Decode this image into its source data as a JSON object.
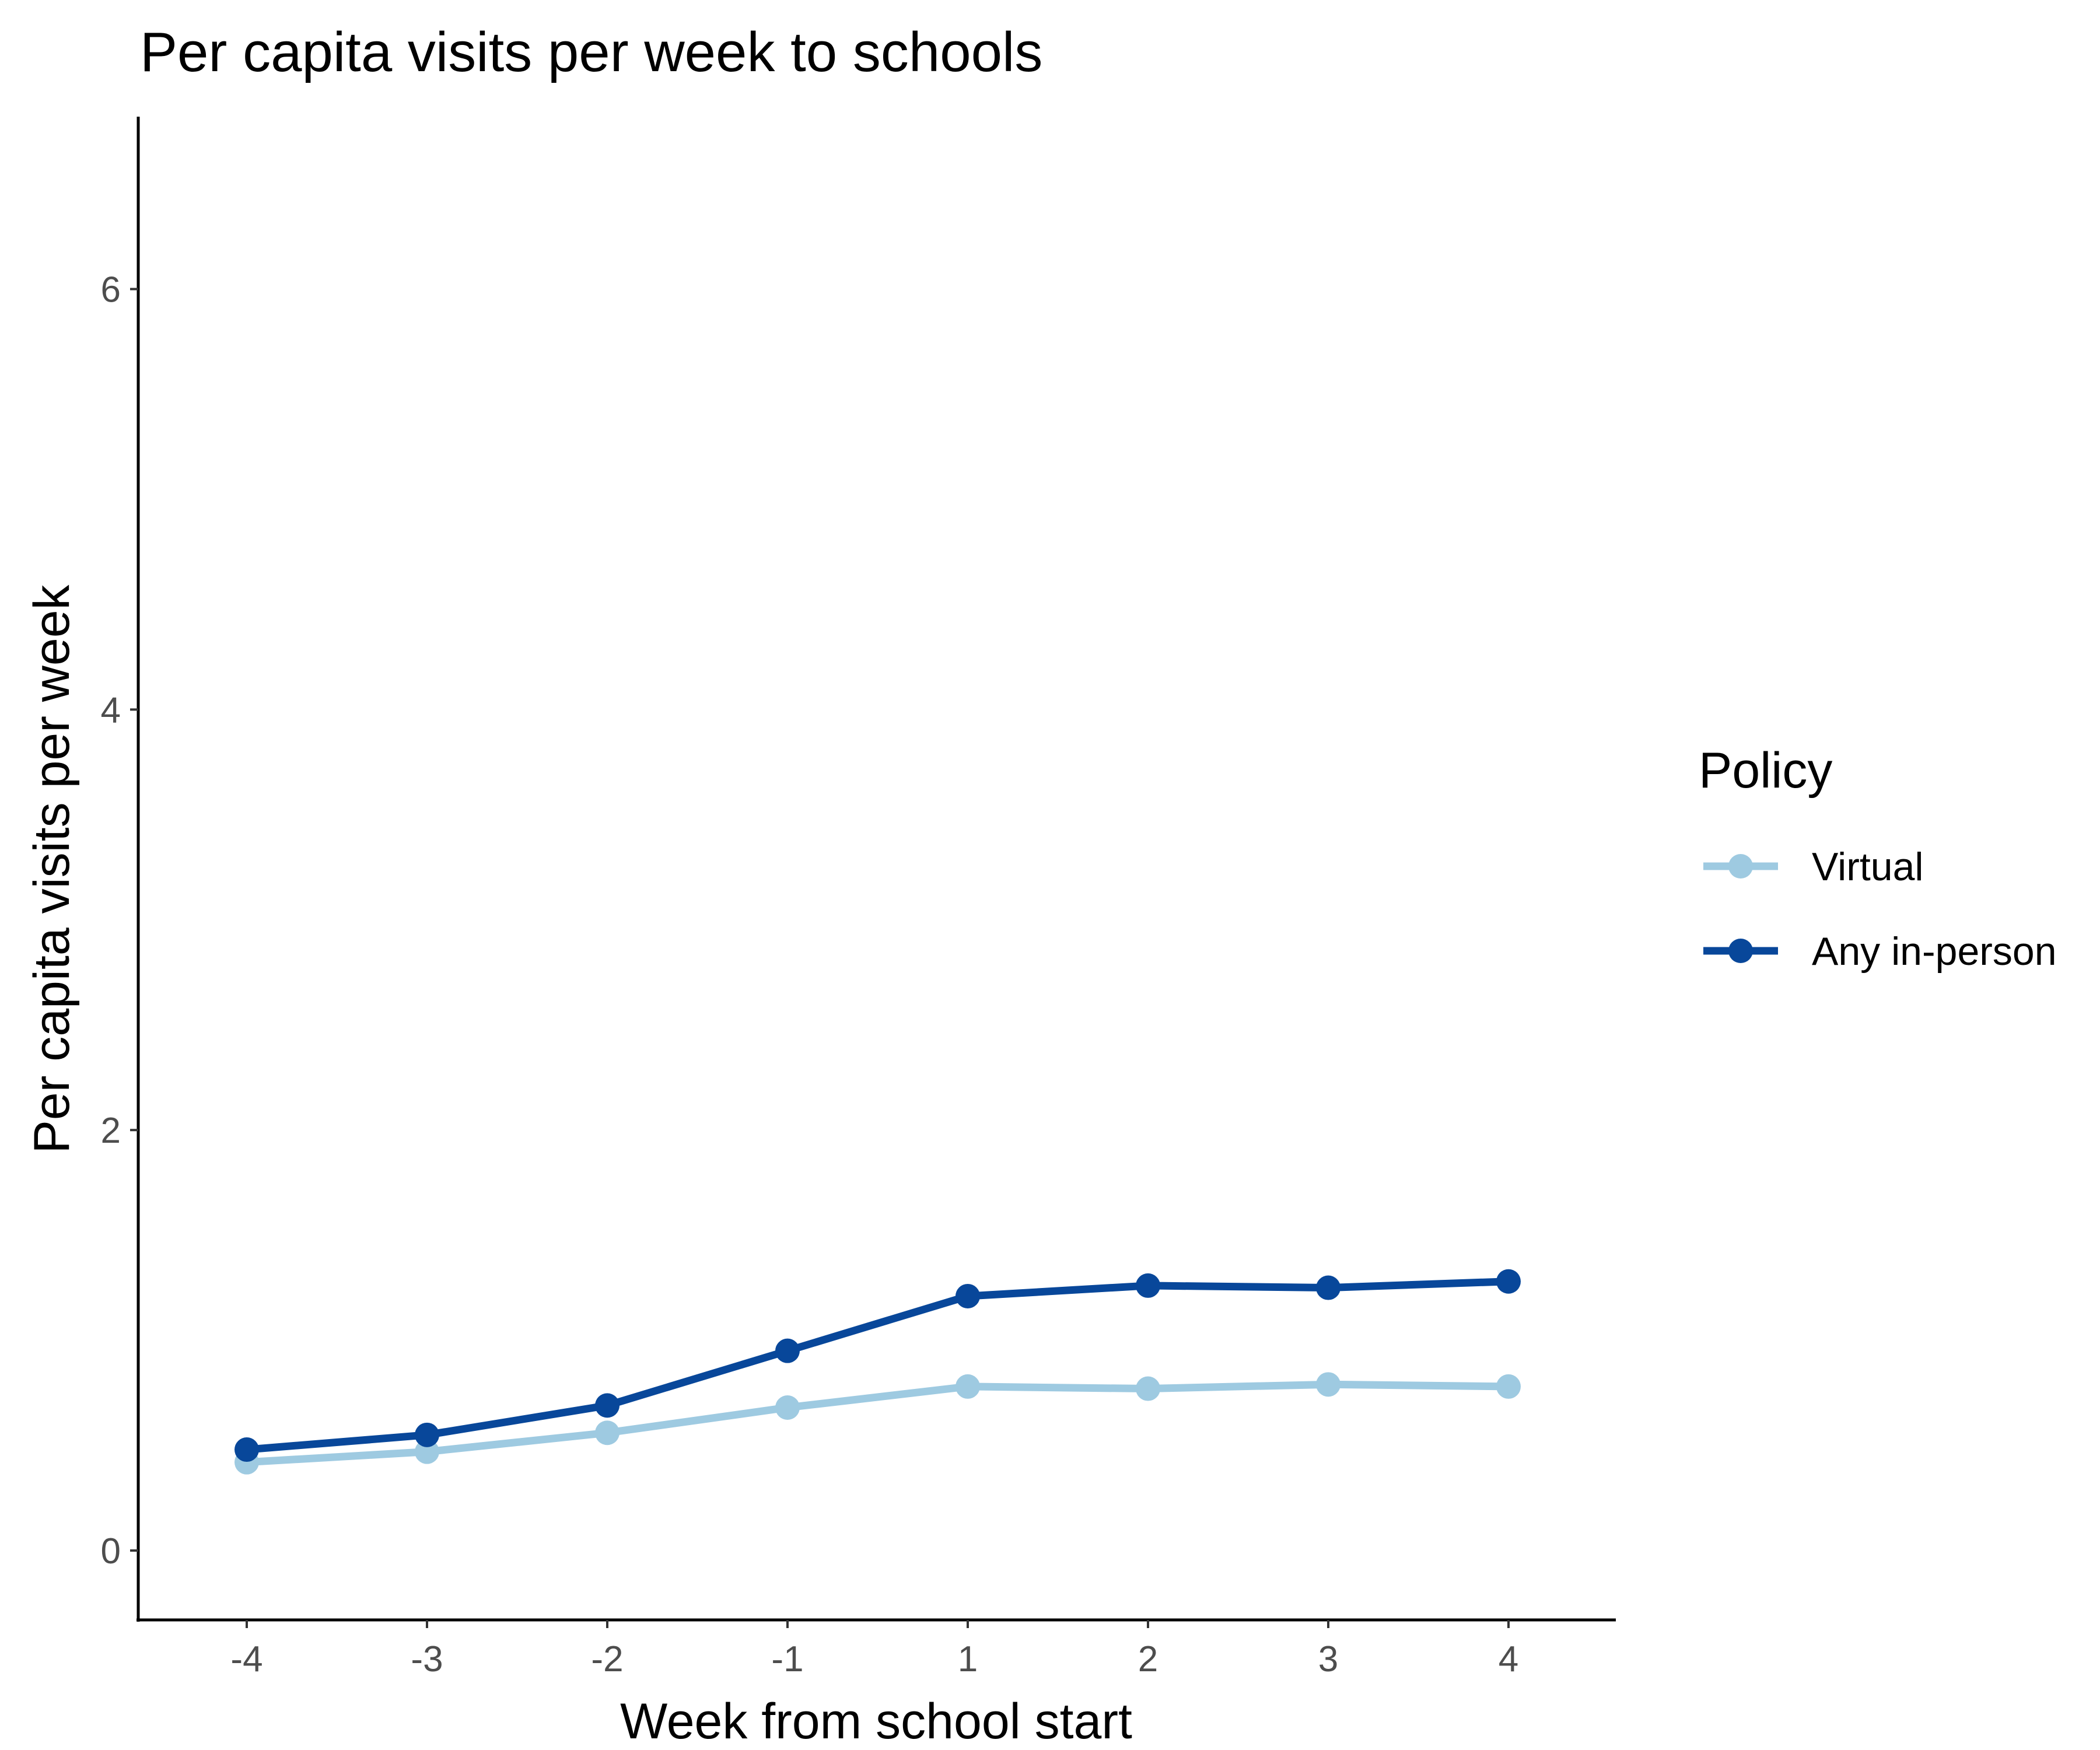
{
  "chart_data": {
    "type": "line",
    "title": "Per capita visits per week to schools",
    "xlabel": "Week from school start",
    "ylabel": "Per capita visits per week",
    "categories": [
      "-4",
      "-3",
      "-2",
      "-1",
      "1",
      "2",
      "3",
      "4"
    ],
    "y_ticks": [
      "0",
      "2",
      "4",
      "6"
    ],
    "ylim": [
      -0.33,
      6.82
    ],
    "grid": false,
    "legend": {
      "title": "Policy",
      "position": "right"
    },
    "series": [
      {
        "name": "Virtual",
        "color": "#9ecae1",
        "values": [
          0.42,
          0.47,
          0.56,
          0.68,
          0.78,
          0.77,
          0.79,
          0.78
        ]
      },
      {
        "name": "Any in-person",
        "color": "#08479a",
        "values": [
          0.48,
          0.55,
          0.69,
          0.95,
          1.21,
          1.26,
          1.25,
          1.28
        ]
      }
    ]
  }
}
